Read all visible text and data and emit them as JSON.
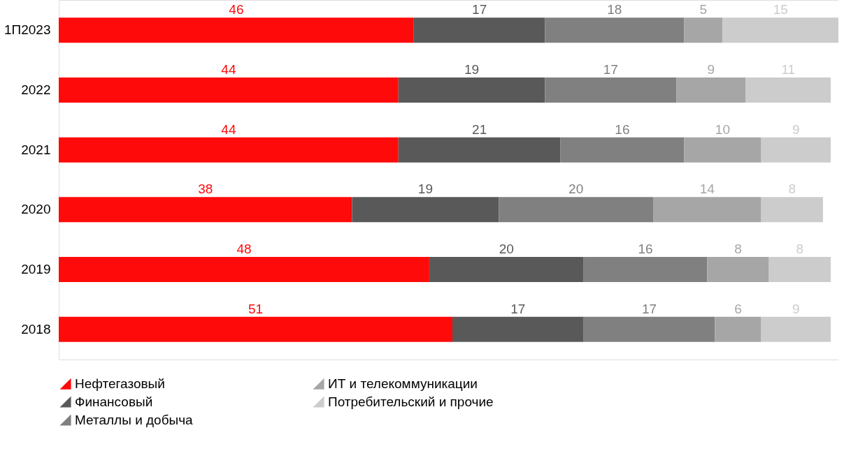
{
  "chart_data": {
    "type": "bar",
    "orientation": "horizontal",
    "stacked": true,
    "data_labels": true,
    "legend": "bottom left",
    "categories": [
      "1П2023",
      "2022",
      "2021",
      "2020",
      "2019",
      "2018"
    ],
    "series": [
      {
        "name": "Нефтегазовый",
        "color": "#ff0a0a",
        "values": [
          46,
          44,
          44,
          38,
          48,
          51
        ]
      },
      {
        "name": "Финансовый",
        "color": "#595959",
        "values": [
          17,
          19,
          21,
          19,
          20,
          17
        ]
      },
      {
        "name": "Металлы и добыча",
        "color": "#808080",
        "values": [
          18,
          17,
          16,
          20,
          16,
          17
        ]
      },
      {
        "name": "ИТ и телекоммуникации",
        "color": "#a6a6a6",
        "values": [
          5,
          9,
          10,
          14,
          8,
          6
        ]
      },
      {
        "name": "Потребительский и прочие",
        "color": "#cccccc",
        "values": [
          15,
          11,
          9,
          8,
          8,
          9
        ]
      }
    ]
  }
}
